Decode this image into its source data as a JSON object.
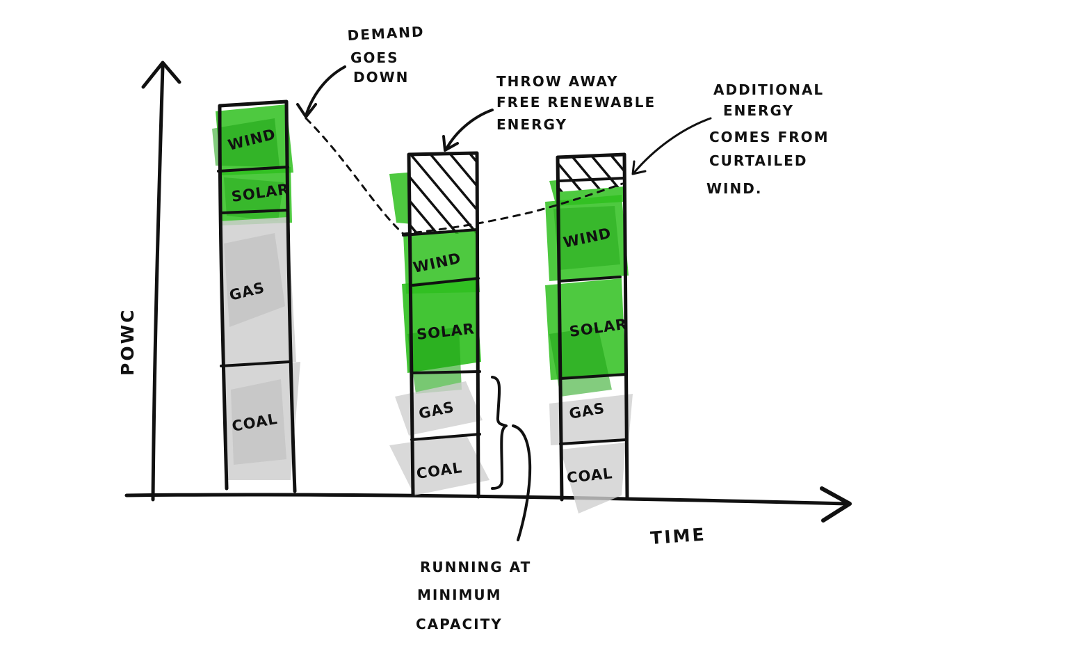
{
  "axes": {
    "y_label": "POWC",
    "x_label": "TIME"
  },
  "colors": {
    "renewable": "#2fbf1f",
    "fossil": "#cfcfcf",
    "ink": "#111111"
  },
  "bars": [
    {
      "segments": [
        {
          "label": "WIND",
          "kind": "renewable"
        },
        {
          "label": "SOLAR",
          "kind": "renewable"
        },
        {
          "label": "GAS",
          "kind": "fossil"
        },
        {
          "label": "COAL",
          "kind": "fossil"
        }
      ]
    },
    {
      "segments": [
        {
          "label": "",
          "kind": "curtailed"
        },
        {
          "label": "WIND",
          "kind": "renewable"
        },
        {
          "label": "SOLAR",
          "kind": "renewable"
        },
        {
          "label": "GAS",
          "kind": "fossil"
        },
        {
          "label": "COAL",
          "kind": "fossil"
        }
      ]
    },
    {
      "segments": [
        {
          "label": "",
          "kind": "curtailed"
        },
        {
          "label": "WIND",
          "kind": "renewable"
        },
        {
          "label": "SOLAR",
          "kind": "renewable"
        },
        {
          "label": "GAS",
          "kind": "fossil"
        },
        {
          "label": "COAL",
          "kind": "fossil"
        }
      ]
    }
  ],
  "annotations": {
    "demand": [
      "DEMAND",
      "GOES",
      "DOWN"
    ],
    "throw_away": [
      "THROW AWAY",
      "FREE RENEWABLE",
      "ENERGY"
    ],
    "additional": [
      "ADDITIONAL",
      "ENERGY",
      "COMES FROM",
      "CURTAILED",
      "WIND."
    ],
    "minimum": [
      "RUNNING AT",
      "MINIMUM",
      "CAPACITY"
    ]
  }
}
